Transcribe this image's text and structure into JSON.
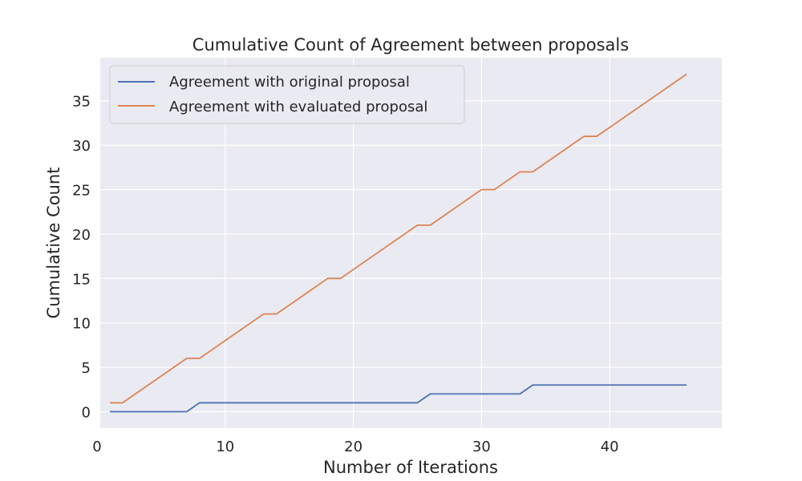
{
  "chart_data": {
    "type": "line",
    "title": "Cumulative Count of Agreement between proposals",
    "xlabel": "Number of Iterations",
    "ylabel": "Cumulative Count",
    "xlim": [
      0.25,
      48.75
    ],
    "ylim": [
      -1.85,
      39.85
    ],
    "xticks": [
      0,
      10,
      20,
      30,
      40
    ],
    "yticks": [
      0,
      5,
      10,
      15,
      20,
      25,
      30,
      35
    ],
    "grid": true,
    "legend_position": "top-left",
    "background": "#EAEAF2",
    "series": [
      {
        "name": "Agreement with original proposal",
        "color": "#4C72B0",
        "x": [
          1,
          7,
          8,
          25,
          26,
          33,
          34,
          46
        ],
        "y": [
          0,
          0,
          1,
          1,
          2,
          2,
          3,
          3
        ]
      },
      {
        "name": "Agreement with evaluated proposal",
        "color": "#DD8452",
        "x": [
          1,
          2,
          7,
          8,
          13,
          14,
          18,
          19,
          25,
          26,
          30,
          31,
          33,
          34,
          38,
          39,
          46
        ],
        "y": [
          1,
          1,
          6,
          6,
          11,
          11,
          15,
          15,
          21,
          21,
          25,
          25,
          27,
          27,
          31,
          31,
          38
        ]
      }
    ]
  }
}
